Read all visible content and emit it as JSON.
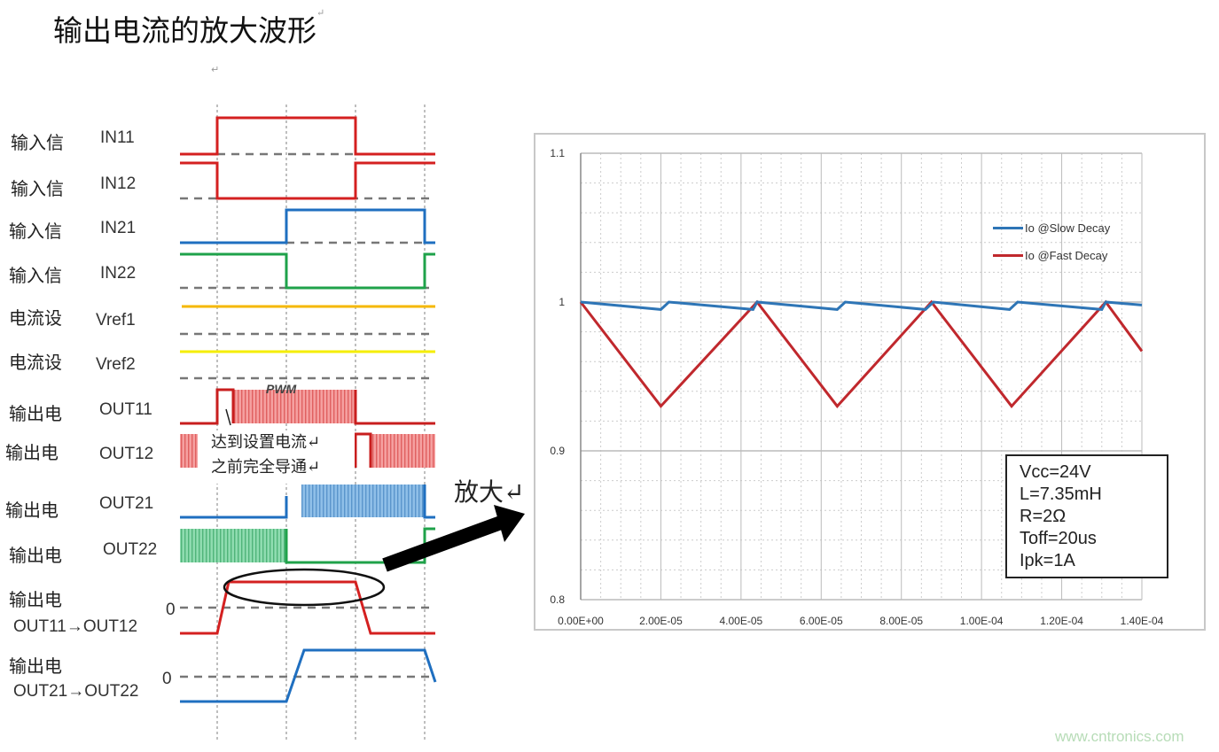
{
  "title": "输出电流的放大波形",
  "return_marks": [
    "↵",
    "↵"
  ],
  "timing_diagram": {
    "rows": [
      {
        "cn": "输入信",
        "signal": "IN11"
      },
      {
        "cn": "输入信",
        "signal": "IN12"
      },
      {
        "cn": "输入信",
        "signal": "IN21"
      },
      {
        "cn": "输入信",
        "signal": "IN22"
      },
      {
        "cn": "电流设",
        "signal": "Vref1"
      },
      {
        "cn": "电流设",
        "signal": "Vref2"
      },
      {
        "cn": "输出电",
        "signal": "OUT11"
      },
      {
        "cn": "输出电",
        "signal": "OUT12"
      },
      {
        "cn": "输出电",
        "signal": "OUT21"
      },
      {
        "cn": "输出电",
        "signal": "OUT22"
      },
      {
        "cn": "输出电",
        "signal": "OUT11→OUT12"
      },
      {
        "cn": "输出电",
        "signal": "OUT21→OUT22"
      }
    ],
    "pwm_label": "PWM",
    "zero_label": "0",
    "callout_line1": "达到设置电流↵",
    "callout_line2": "之前完全导通↵",
    "colors": {
      "in1": "#d42020",
      "in2_a": "#1f6fc0",
      "in2_b": "#1fa24a",
      "vref1": "#f5b800",
      "vref2": "#f5ee00",
      "hatch_red": "#f08080",
      "hatch_blue": "#6fa8dc",
      "hatch_green": "#6fcf97"
    }
  },
  "zoom_label": "放大↵",
  "chart_data": {
    "type": "line",
    "title": "",
    "xlabel": "",
    "ylabel": "",
    "xlim": [
      0,
      0.00014
    ],
    "ylim": [
      0.8,
      1.1
    ],
    "x_ticks": [
      "0.00E+00",
      "2.00E-05",
      "4.00E-05",
      "6.00E-05",
      "8.00E-05",
      "1.00E-04",
      "1.20E-04",
      "1.40E-04"
    ],
    "y_ticks": [
      "0.8",
      "0.9",
      "1",
      "1.1"
    ],
    "grid": true,
    "legend_position": "top-right",
    "series": [
      {
        "name": "Io @Slow Decay",
        "color": "#2e75b6",
        "x": [
          0,
          2e-05,
          2.2e-05,
          4.3e-05,
          4.4e-05,
          6.4e-05,
          6.6e-05,
          8.6e-05,
          8.8e-05,
          0.000107,
          0.000109,
          0.00013,
          0.000131,
          0.00014
        ],
        "y": [
          1.0,
          0.995,
          1.0,
          0.995,
          1.0,
          0.995,
          1.0,
          0.995,
          1.0,
          0.995,
          1.0,
          0.995,
          1.0,
          0.998
        ]
      },
      {
        "name": "Io @Fast Decay",
        "color": "#c0282d",
        "x": [
          0,
          2e-05,
          4.4e-05,
          6.4e-05,
          8.75e-05,
          0.0001075,
          0.000131,
          0.00014
        ],
        "y": [
          1.0,
          0.93,
          1.0,
          0.93,
          1.0,
          0.93,
          1.0,
          0.967
        ]
      }
    ],
    "annotation": [
      "Vcc=24V",
      "L=7.35mH",
      "R=2Ω",
      "Toff=20us",
      "Ipk=1A"
    ]
  },
  "watermark": "www.cntronics.com"
}
